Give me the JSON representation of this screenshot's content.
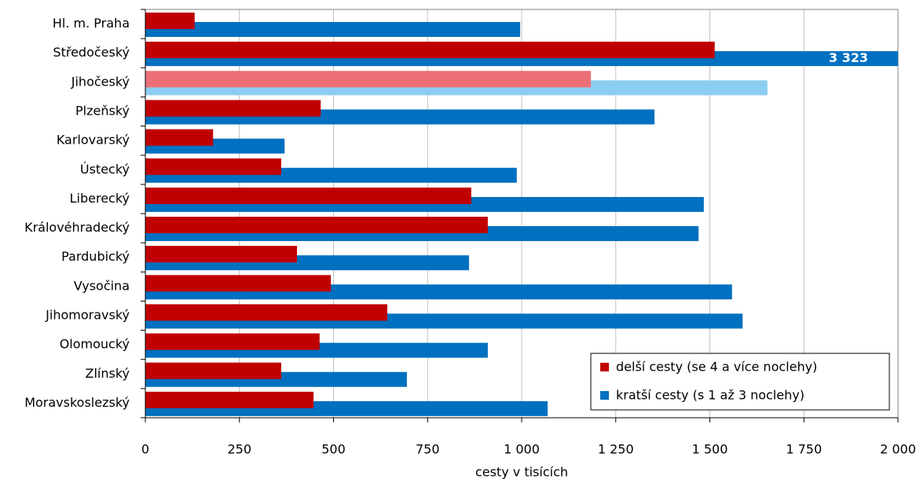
{
  "chart_data": {
    "type": "bar",
    "orientation": "horizontal",
    "x_label": "cesty v tisících",
    "categories": [
      "Hl. m. Praha",
      "Středočeský",
      "Jihočeský",
      "Plzeňský",
      "Karlovarský",
      "Ústecký",
      "Liberecký",
      "Královéhradecký",
      "Pardubický",
      "Vysočina",
      "Jihomoravský",
      "Olomoucký",
      "Zlínský",
      "Moravskoslezský"
    ],
    "series": [
      {
        "name": "kratší cesty (s 1 až 3 noclehy)",
        "color": "#0070c0",
        "highlight_color": "#8dcdf2",
        "values": [
          996,
          3323,
          1653,
          1353,
          370,
          987,
          1484,
          1470,
          860,
          1559,
          1587,
          910,
          695,
          1069
        ],
        "value_labels": [
          null,
          "3 323",
          null,
          null,
          null,
          null,
          null,
          null,
          null,
          null,
          null,
          null,
          null,
          null
        ]
      },
      {
        "name": "delší cesty (se 4 a více noclehy)",
        "color": "#c00000",
        "highlight_color": "#ec6f77",
        "values": [
          131,
          1513,
          1184,
          466,
          180,
          361,
          866,
          910,
          403,
          493,
          643,
          463,
          361,
          447
        ]
      }
    ],
    "highlight_index": 2,
    "xlim": [
      0,
      2000
    ],
    "xticks": [
      0,
      250,
      500,
      750,
      {
        "value": 1000,
        "label": "1 000"
      },
      {
        "value": 1250,
        "label": "1 250"
      },
      {
        "value": 1500,
        "label": "1 500"
      },
      {
        "value": 1750,
        "label": "1 750"
      },
      {
        "value": 2000,
        "label": "2 000"
      }
    ],
    "grid": true,
    "legend": "lower right"
  }
}
